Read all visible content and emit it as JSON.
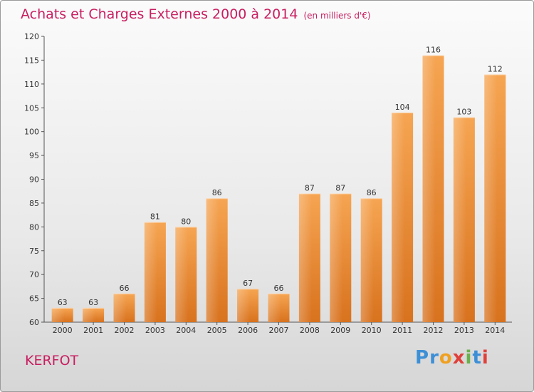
{
  "header": {
    "title": "Achats et Charges Externes 2000 à 2014",
    "subtitle": "(en milliers d'€)"
  },
  "footer": {
    "place": "KERFOT",
    "logo": [
      "P",
      "r",
      "o",
      "x",
      "i",
      "t",
      "i"
    ],
    "logo_colors": [
      "#3d8fd6",
      "#3d8fd6",
      "#f0a020",
      "#e0403a",
      "#6ab04c",
      "#3d8fd6",
      "#e0403a"
    ]
  },
  "chart_data": {
    "type": "bar",
    "title": "Achats et Charges Externes 2000 à 2014",
    "subtitle": "(en milliers d'€)",
    "categories": [
      "2000",
      "2001",
      "2002",
      "2003",
      "2004",
      "2005",
      "2006",
      "2007",
      "2008",
      "2009",
      "2010",
      "2011",
      "2012",
      "2013",
      "2014"
    ],
    "values": [
      63,
      63,
      66,
      81,
      80,
      86,
      67,
      66,
      87,
      87,
      86,
      104,
      116,
      103,
      112
    ],
    "ylim": [
      60,
      120
    ],
    "yticks": [
      60,
      65,
      70,
      75,
      80,
      85,
      90,
      95,
      100,
      105,
      110,
      115,
      120
    ],
    "grid": false,
    "bar_color": "#f0913a"
  }
}
